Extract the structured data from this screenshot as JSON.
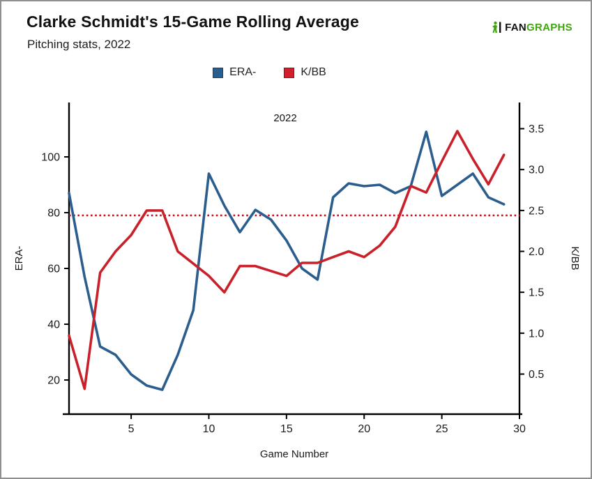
{
  "header": {
    "title": "Clarke Schmidt's 15-Game Rolling Average",
    "subtitle": "Pitching stats, 2022"
  },
  "logo": {
    "fan": "FAN",
    "graphs": "GRAPHS"
  },
  "legend": [
    {
      "label": "ERA-",
      "color": "#2b5d8d",
      "border": "#1d3f63"
    },
    {
      "label": "K/BB",
      "color": "#d0202c",
      "border": "#8e121c"
    }
  ],
  "chart_data": {
    "type": "line",
    "annotation": "2022",
    "xlabel": "Game Number",
    "x_range": [
      1,
      30
    ],
    "x_ticks": [
      5,
      10,
      15,
      20,
      25,
      30
    ],
    "x": [
      1,
      2,
      3,
      4,
      5,
      6,
      7,
      8,
      9,
      10,
      11,
      12,
      13,
      14,
      15,
      16,
      17,
      18,
      19,
      20,
      21,
      22,
      23,
      24,
      25,
      26,
      27,
      28,
      29
    ],
    "left_axis": {
      "label": "ERA-",
      "ticks": [
        20,
        40,
        60,
        80,
        100
      ],
      "range": [
        7.75,
        119.5
      ]
    },
    "right_axis": {
      "label": "K/BB",
      "ticks": [
        0.5,
        1.0,
        1.5,
        2.0,
        2.5,
        3.0,
        3.5
      ],
      "range": [
        0.01,
        3.82
      ]
    },
    "series": [
      {
        "name": "ERA-",
        "axis": "left",
        "color": "#2b5d8d",
        "values": [
          87,
          57,
          32,
          29,
          22,
          18,
          16.5,
          29,
          45,
          94,
          82.5,
          73,
          81,
          77.5,
          70,
          60,
          56,
          85.5,
          90.5,
          89.5,
          90,
          87,
          89.5,
          109,
          86,
          90,
          94,
          85.5,
          83
        ]
      },
      {
        "name": "K/BB",
        "axis": "right",
        "color": "#c9202a",
        "values": [
          0.97,
          0.32,
          1.74,
          2.0,
          2.2,
          2.5,
          2.5,
          2.0,
          1.85,
          1.7,
          1.5,
          1.82,
          1.82,
          1.76,
          1.7,
          1.86,
          1.86,
          1.93,
          2.0,
          1.93,
          2.07,
          2.3,
          2.8,
          2.72,
          3.1,
          3.47,
          3.13,
          2.82,
          3.18
        ]
      }
    ],
    "reference_line": {
      "axis": "right",
      "value": 2.44,
      "style": "dotted",
      "color": "#cc0d1d"
    },
    "grid": false,
    "legend_position": "top-center"
  }
}
